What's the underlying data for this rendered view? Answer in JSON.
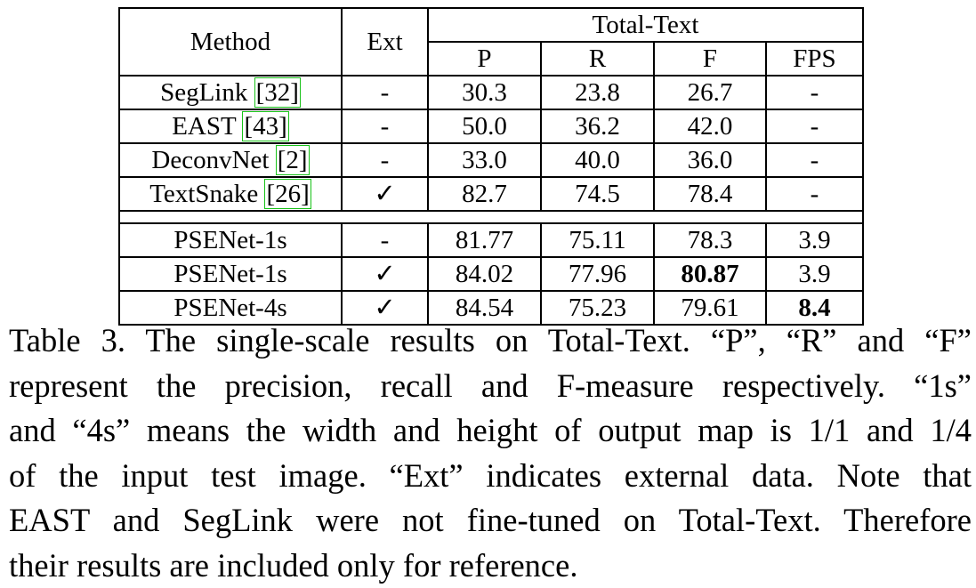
{
  "table": {
    "header": {
      "method": "Method",
      "ext": "Ext",
      "group": "Total-Text",
      "cols": [
        "P",
        "R",
        "F",
        "FPS"
      ]
    },
    "group1": [
      {
        "name": "SegLink ",
        "ref": "[32]",
        "ext": "-",
        "p": "30.3",
        "r": "23.8",
        "f": "26.7",
        "fps": "-"
      },
      {
        "name": "EAST ",
        "ref": "[43]",
        "ext": "-",
        "p": "50.0",
        "r": "36.2",
        "f": "42.0",
        "fps": "-"
      },
      {
        "name": "DeconvNet ",
        "ref": "[2]",
        "ext": "-",
        "p": "33.0",
        "r": "40.0",
        "f": "36.0",
        "fps": "-"
      },
      {
        "name": "TextSnake ",
        "ref": "[26]",
        "ext": "✓",
        "p": "82.7",
        "r": "74.5",
        "f": "78.4",
        "fps": "-"
      }
    ],
    "group2": [
      {
        "name": "PSENet-1s",
        "ext": "-",
        "p": "81.77",
        "r": "75.11",
        "f": "78.3",
        "fps": "3.9"
      },
      {
        "name": "PSENet-1s",
        "ext": "✓",
        "p": "84.02",
        "r": "77.96",
        "f": "80.87",
        "fps": "3.9"
      },
      {
        "name": "PSENet-4s",
        "ext": "✓",
        "p": "84.54",
        "r": "75.23",
        "f": "79.61",
        "fps": "8.4"
      }
    ]
  },
  "caption": {
    "lines": [
      "Table 3. The single-scale results on Total-Text. “P”, “R” and “F”",
      "represent the precision, recall and F-measure respectively. “1s”",
      "and “4s” means the width and height of output map is 1/1 and 1/4",
      "of the input test image. “Ext” indicates external data. Note that",
      "EAST and SegLink were not fine-tuned on Total-Text. Therefore",
      "their results are included only for reference."
    ]
  }
}
